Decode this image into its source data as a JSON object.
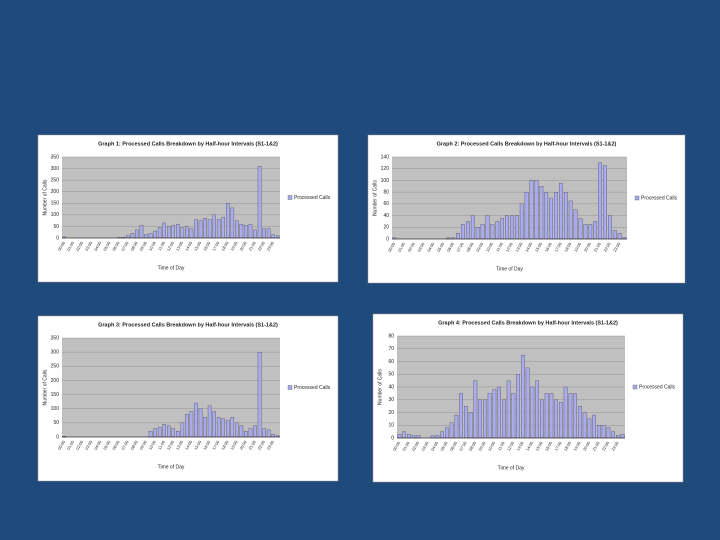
{
  "chart_data": [
    {
      "type": "bar",
      "title": "Graph 1: Processed Calls Breakdown by Half-hour Intervals (S1-1&2)",
      "x_label": "Time of Day",
      "y_label": "Number of Calls",
      "categories": [
        "00:00",
        null,
        "01:00",
        null,
        "02:00",
        null,
        "03:00",
        null,
        "04:00",
        null,
        "05:00",
        null,
        "06:00",
        null,
        "07:00",
        null,
        "08:00",
        null,
        "09:00",
        null,
        "10:00",
        null,
        "11:00",
        null,
        "12:00",
        null,
        "13:00",
        null,
        "14:00",
        null,
        "15:00",
        null,
        "16:00",
        null,
        "17:00",
        null,
        "18:00",
        null,
        "19:00",
        null,
        "20:00",
        null,
        "21:00",
        null,
        "22:00",
        null,
        "23:00",
        null
      ],
      "series": [
        {
          "name": "Processed Calls",
          "color": "#aaaaf0",
          "values": [
            5,
            0,
            0,
            0,
            0,
            0,
            0,
            0,
            0,
            0,
            0,
            0,
            2,
            3,
            10,
            20,
            35,
            55,
            15,
            20,
            30,
            45,
            65,
            50,
            55,
            60,
            45,
            50,
            40,
            80,
            75,
            85,
            80,
            100,
            80,
            90,
            150,
            130,
            75,
            60,
            55,
            60,
            35,
            310,
            40,
            40,
            15,
            10
          ]
        }
      ],
      "ylim": [
        0,
        350
      ],
      "yticks": [
        0,
        50,
        100,
        150,
        200,
        250,
        300,
        350
      ],
      "grid": true
    },
    {
      "type": "bar",
      "title": "Graph 2: Processed Calls Breakdown by Half-hour Intervals (S1-1&2)",
      "x_label": "Time of Day",
      "y_label": "Number of Calls",
      "categories": [
        "00:00",
        null,
        "01:00",
        null,
        "02:00",
        null,
        "03:00",
        null,
        "04:00",
        null,
        "05:00",
        null,
        "06:00",
        null,
        "07:00",
        null,
        "08:00",
        null,
        "09:00",
        null,
        "10:00",
        null,
        "11:00",
        null,
        "12:00",
        null,
        "13:00",
        null,
        "14:00",
        null,
        "15:00",
        null,
        "16:00",
        null,
        "17:00",
        null,
        "18:00",
        null,
        "19:00",
        null,
        "20:00",
        null,
        "21:00",
        null,
        "22:00",
        null,
        "23:00",
        null
      ],
      "series": [
        {
          "name": "Processed Calls",
          "color": "#aaaaf0",
          "values": [
            2,
            0,
            0,
            0,
            0,
            0,
            0,
            0,
            0,
            0,
            0,
            2,
            2,
            10,
            25,
            30,
            40,
            20,
            25,
            40,
            25,
            30,
            35,
            40,
            40,
            40,
            60,
            80,
            100,
            100,
            90,
            80,
            70,
            80,
            95,
            80,
            65,
            50,
            35,
            25,
            25,
            30,
            130,
            125,
            40,
            15,
            10,
            2
          ]
        }
      ],
      "ylim": [
        0,
        140
      ],
      "yticks": [
        0,
        20,
        40,
        60,
        80,
        100,
        120,
        140
      ],
      "grid": true
    },
    {
      "type": "bar",
      "title": "Graph 3: Processed Calls Breakdown by Half-hour Intervals (S1-1&2)",
      "x_label": "Time of Day",
      "y_label": "Number of Calls",
      "categories": [
        "00:00",
        null,
        "01:00",
        null,
        "02:00",
        null,
        "03:00",
        null,
        "04:00",
        null,
        "05:00",
        null,
        "06:00",
        null,
        "07:00",
        null,
        "08:00",
        null,
        "09:00",
        null,
        "10:00",
        null,
        "11:00",
        null,
        "12:00",
        null,
        "13:00",
        null,
        "14:00",
        null,
        "15:00",
        null,
        "16:00",
        null,
        "17:00",
        null,
        "18:00",
        null,
        "19:00",
        null,
        "20:00",
        null,
        "21:00",
        null,
        "22:00",
        null,
        "23:00",
        null
      ],
      "series": [
        {
          "name": "Processed Calls",
          "color": "#aaaaf0",
          "values": [
            3,
            0,
            0,
            0,
            0,
            0,
            0,
            0,
            0,
            0,
            0,
            0,
            0,
            0,
            0,
            0,
            0,
            0,
            0,
            20,
            30,
            35,
            45,
            40,
            30,
            20,
            50,
            80,
            90,
            120,
            100,
            70,
            110,
            90,
            70,
            65,
            60,
            70,
            50,
            40,
            20,
            30,
            40,
            300,
            30,
            25,
            10,
            5
          ]
        }
      ],
      "ylim": [
        0,
        350
      ],
      "yticks": [
        0,
        50,
        100,
        150,
        200,
        250,
        300,
        350
      ],
      "grid": true
    },
    {
      "type": "bar",
      "title": "Graph 4: Processed Calls Breakdown by Half-hour Intervals (S1-1&2)",
      "x_label": "Time of Day",
      "y_label": "Number of Calls",
      "categories": [
        "00:00",
        null,
        "01:00",
        null,
        "02:00",
        null,
        "03:00",
        null,
        "04:00",
        null,
        "05:00",
        null,
        "06:00",
        null,
        "07:00",
        null,
        "08:00",
        null,
        "09:00",
        null,
        "10:00",
        null,
        "11:00",
        null,
        "12:00",
        null,
        "13:00",
        null,
        "14:00",
        null,
        "15:00",
        null,
        "16:00",
        null,
        "17:00",
        null,
        "18:00",
        null,
        "19:00",
        null,
        "20:00",
        null,
        "21:00",
        null,
        "22:00",
        null,
        "23:00",
        null
      ],
      "series": [
        {
          "name": "Processed Calls",
          "color": "#aaaaf0",
          "values": [
            3,
            5,
            3,
            2,
            2,
            0,
            0,
            2,
            2,
            5,
            8,
            12,
            18,
            35,
            25,
            20,
            45,
            30,
            30,
            35,
            38,
            40,
            30,
            45,
            35,
            50,
            65,
            55,
            40,
            45,
            30,
            35,
            35,
            30,
            28,
            40,
            35,
            35,
            25,
            20,
            15,
            18,
            10,
            10,
            8,
            5,
            2,
            3
          ]
        }
      ],
      "ylim": [
        0,
        80
      ],
      "yticks": [
        0,
        10,
        20,
        30,
        40,
        50,
        60,
        70,
        80
      ],
      "grid": true
    }
  ]
}
